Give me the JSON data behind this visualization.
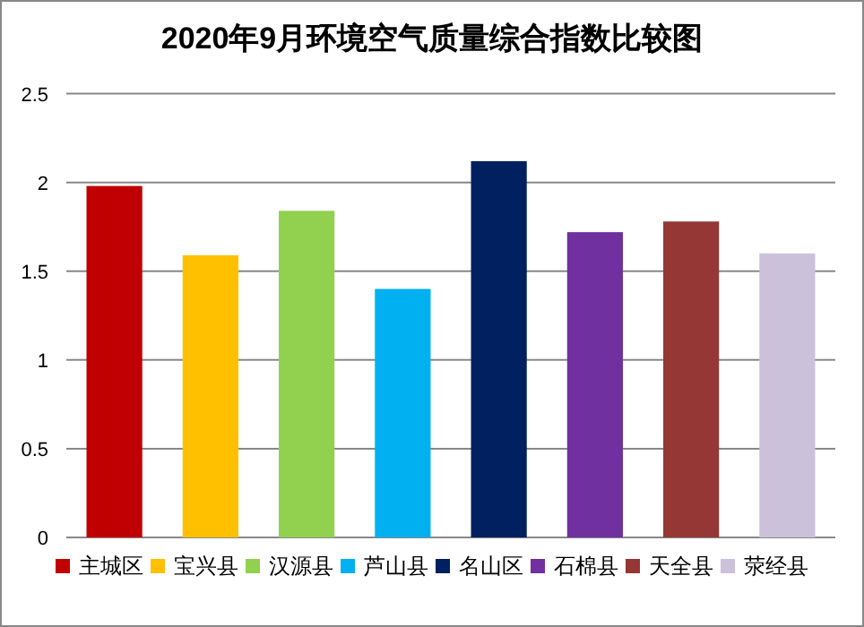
{
  "chart_data": {
    "type": "bar",
    "title": "2020年9月环境空气质量综合指数比较图",
    "categories": [
      null
    ],
    "series": [
      {
        "name": "主城区",
        "color": "#c00000",
        "values": [
          1.98
        ]
      },
      {
        "name": "宝兴县",
        "color": "#ffc000",
        "values": [
          1.59
        ]
      },
      {
        "name": "汉源县",
        "color": "#92d050",
        "values": [
          1.84
        ]
      },
      {
        "name": "芦山县",
        "color": "#00b0f0",
        "values": [
          1.4
        ]
      },
      {
        "name": "名山区",
        "color": "#002060",
        "values": [
          2.12
        ]
      },
      {
        "name": "石棉县",
        "color": "#7030a0",
        "values": [
          1.72
        ]
      },
      {
        "name": "天全县",
        "color": "#953735",
        "values": [
          1.78
        ]
      },
      {
        "name": "荥经县",
        "color": "#ccc1da",
        "values": [
          1.6
        ]
      }
    ],
    "ylim": [
      0,
      2.5
    ],
    "yticks": [
      0,
      0.5,
      1,
      1.5,
      2,
      2.5
    ],
    "grid": "y",
    "legend": "bottom"
  }
}
